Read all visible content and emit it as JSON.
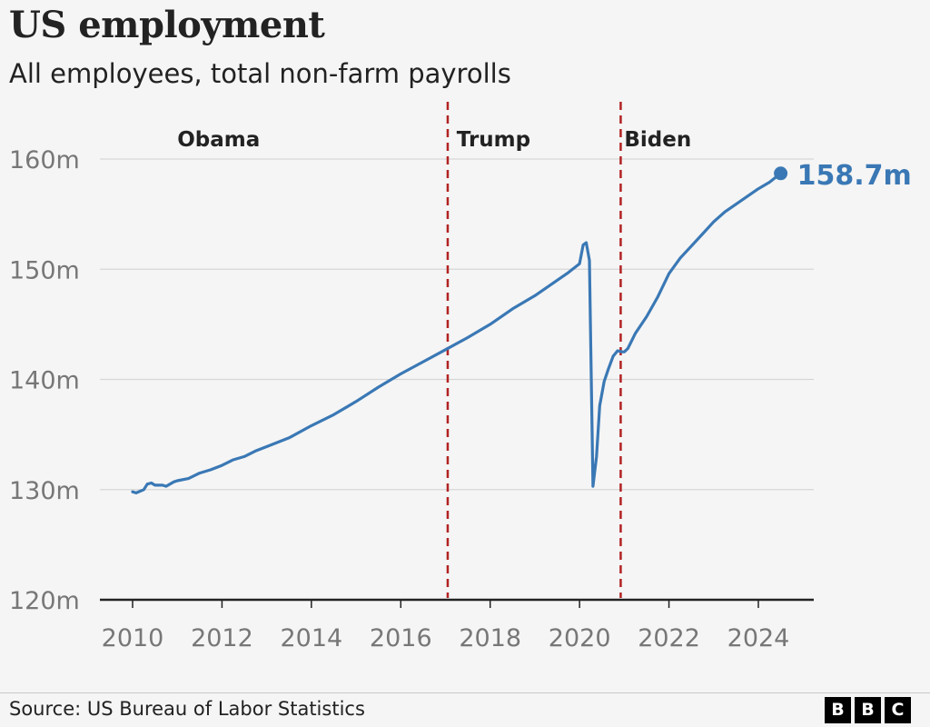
{
  "header": {
    "title": "US employment",
    "subtitle": "All employees, total non-farm payrolls"
  },
  "footer": {
    "source": "Source: US Bureau of Labor Statistics",
    "logo_letters": [
      "B",
      "B",
      "C"
    ]
  },
  "colors": {
    "line": "#3a78b5",
    "divider": "#b22222",
    "grid": "#d6d6d6",
    "axis": "#222222",
    "tick_text": "#777777",
    "background": "#f5f5f5"
  },
  "chart_data": {
    "type": "line",
    "title": "US employment",
    "subtitle": "All employees, total non-farm payrolls",
    "xlabel": "",
    "ylabel": "",
    "xlim": [
      2009.7,
      2025.2
    ],
    "ylim": [
      120,
      160
    ],
    "xticks": [
      2010,
      2012,
      2014,
      2016,
      2018,
      2020,
      2022,
      2024
    ],
    "xtick_labels": [
      "2010",
      "2012",
      "2014",
      "2016",
      "2018",
      "2020",
      "2022",
      "2024"
    ],
    "yticks": [
      120,
      130,
      140,
      150,
      160
    ],
    "ytick_labels": [
      "120m",
      "130m",
      "140m",
      "150m",
      "160m"
    ],
    "grid": true,
    "series": [
      {
        "values": [
          [
            2010.0,
            129.8
          ],
          [
            2010.08,
            129.7
          ],
          [
            2010.25,
            130.0
          ],
          [
            2010.33,
            130.5
          ],
          [
            2010.42,
            130.6
          ],
          [
            2010.5,
            130.4
          ],
          [
            2010.67,
            130.4
          ],
          [
            2010.75,
            130.3
          ],
          [
            2010.92,
            130.7
          ],
          [
            2011.0,
            130.8
          ],
          [
            2011.25,
            131.0
          ],
          [
            2011.5,
            131.5
          ],
          [
            2011.75,
            131.8
          ],
          [
            2012.0,
            132.2
          ],
          [
            2012.25,
            132.7
          ],
          [
            2012.5,
            133.0
          ],
          [
            2012.75,
            133.5
          ],
          [
            2013.0,
            133.9
          ],
          [
            2013.5,
            134.7
          ],
          [
            2014.0,
            135.8
          ],
          [
            2014.5,
            136.8
          ],
          [
            2015.0,
            138.0
          ],
          [
            2015.5,
            139.3
          ],
          [
            2016.0,
            140.5
          ],
          [
            2016.5,
            141.6
          ],
          [
            2017.0,
            142.7
          ],
          [
            2017.5,
            143.8
          ],
          [
            2018.0,
            145.0
          ],
          [
            2018.5,
            146.4
          ],
          [
            2019.0,
            147.6
          ],
          [
            2019.5,
            149.0
          ],
          [
            2019.75,
            149.7
          ],
          [
            2020.0,
            150.5
          ],
          [
            2020.08,
            152.2
          ],
          [
            2020.15,
            152.4
          ],
          [
            2020.22,
            150.8
          ],
          [
            2020.3,
            130.3
          ],
          [
            2020.38,
            133.0
          ],
          [
            2020.45,
            137.6
          ],
          [
            2020.55,
            139.8
          ],
          [
            2020.65,
            141.0
          ],
          [
            2020.75,
            142.1
          ],
          [
            2020.85,
            142.6
          ],
          [
            2020.95,
            142.5
          ],
          [
            2021.0,
            142.5
          ],
          [
            2021.08,
            142.8
          ],
          [
            2021.25,
            144.2
          ],
          [
            2021.5,
            145.7
          ],
          [
            2021.75,
            147.5
          ],
          [
            2022.0,
            149.6
          ],
          [
            2022.25,
            151.0
          ],
          [
            2022.5,
            152.1
          ],
          [
            2022.75,
            153.2
          ],
          [
            2023.0,
            154.3
          ],
          [
            2023.25,
            155.2
          ],
          [
            2023.5,
            155.9
          ],
          [
            2023.75,
            156.6
          ],
          [
            2024.0,
            157.3
          ],
          [
            2024.25,
            157.9
          ],
          [
            2024.5,
            158.7
          ]
        ]
      }
    ],
    "last_value": 2024.5,
    "last_value_label": "158.7m",
    "annotations": [
      {
        "label": "Obama",
        "x": 2011.0
      },
      {
        "label": "Trump",
        "x": 2017.25
      },
      {
        "label": "Biden",
        "x": 2021.0
      }
    ],
    "dividers": [
      {
        "x": 2017.05,
        "label": "Trump"
      },
      {
        "x": 2020.92,
        "label": "Biden"
      }
    ]
  }
}
